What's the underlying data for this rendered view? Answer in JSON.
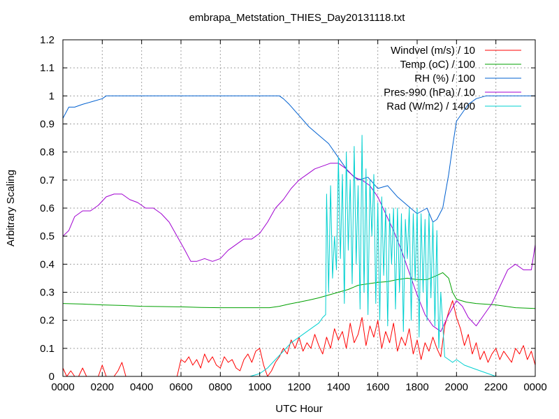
{
  "chart_data": {
    "type": "line",
    "title": "embrapa_Metstation_THIES_Day20131118.txt",
    "xlabel": "UTC Hour",
    "ylabel": "Arbitrary Scaling",
    "xlim": [
      0,
      24
    ],
    "ylim": [
      0,
      1.2
    ],
    "grid": true,
    "legend": "top-right",
    "x_ticks": [
      {
        "value": 0,
        "label": "0000"
      },
      {
        "value": 2,
        "label": "0200"
      },
      {
        "value": 4,
        "label": "0400"
      },
      {
        "value": 6,
        "label": "0600"
      },
      {
        "value": 8,
        "label": "0800"
      },
      {
        "value": 10,
        "label": "1000"
      },
      {
        "value": 12,
        "label": "1200"
      },
      {
        "value": 14,
        "label": "1400"
      },
      {
        "value": 16,
        "label": "1600"
      },
      {
        "value": 18,
        "label": "1800"
      },
      {
        "value": 20,
        "label": "2000"
      },
      {
        "value": 22,
        "label": "2200"
      },
      {
        "value": 24,
        "label": "0000"
      }
    ],
    "y_ticks": [
      {
        "value": 0,
        "label": "0"
      },
      {
        "value": 0.1,
        "label": "0.1"
      },
      {
        "value": 0.2,
        "label": "0.2"
      },
      {
        "value": 0.3,
        "label": "0.3"
      },
      {
        "value": 0.4,
        "label": "0.4"
      },
      {
        "value": 0.5,
        "label": "0.5"
      },
      {
        "value": 0.6,
        "label": "0.6"
      },
      {
        "value": 0.7,
        "label": "0.7"
      },
      {
        "value": 0.8,
        "label": "0.8"
      },
      {
        "value": 0.9,
        "label": "0.9"
      },
      {
        "value": 1,
        "label": "1"
      },
      {
        "value": 1.1,
        "label": "1.1"
      },
      {
        "value": 1.2,
        "label": "1.2"
      }
    ],
    "series": [
      {
        "name": "Windvel (m/s) / 10",
        "color": "#ff0000",
        "x": [
          0,
          0.2,
          0.4,
          0.6,
          0.8,
          1.0,
          1.2,
          1.4,
          1.6,
          1.8,
          2.0,
          2.2,
          2.4,
          2.6,
          2.8,
          3.0,
          3.2,
          3.4,
          3.6,
          3.8,
          4.0,
          4.2,
          4.4,
          4.6,
          4.8,
          5.0,
          5.2,
          5.4,
          5.6,
          5.8,
          6.0,
          6.2,
          6.4,
          6.6,
          6.8,
          7.0,
          7.2,
          7.4,
          7.6,
          7.8,
          8.0,
          8.2,
          8.4,
          8.6,
          8.8,
          9.0,
          9.2,
          9.4,
          9.6,
          9.8,
          10.0,
          10.2,
          10.4,
          10.6,
          10.8,
          11.0,
          11.2,
          11.4,
          11.6,
          11.8,
          12.0,
          12.2,
          12.4,
          12.6,
          12.8,
          13.0,
          13.2,
          13.4,
          13.6,
          13.8,
          14.0,
          14.2,
          14.4,
          14.6,
          14.8,
          15.0,
          15.2,
          15.4,
          15.6,
          15.8,
          16.0,
          16.2,
          16.4,
          16.6,
          16.8,
          17.0,
          17.2,
          17.4,
          17.6,
          17.8,
          18.0,
          18.2,
          18.4,
          18.6,
          18.8,
          19.0,
          19.2,
          19.4,
          19.6,
          19.8,
          20.0,
          20.2,
          20.4,
          20.6,
          20.8,
          21.0,
          21.2,
          21.4,
          21.6,
          21.8,
          22.0,
          22.2,
          22.4,
          22.6,
          22.8,
          23.0,
          23.2,
          23.4,
          23.6,
          23.8,
          24.0
        ],
        "values": [
          0.03,
          0.0,
          0.02,
          0.0,
          0.0,
          0.03,
          0.0,
          0.0,
          0.0,
          0.0,
          0.04,
          0.0,
          0.0,
          0.0,
          0.02,
          0.05,
          0.0,
          0.0,
          0.0,
          0.0,
          0.0,
          0.0,
          0.0,
          0.0,
          0.0,
          0.0,
          0.0,
          0.0,
          0.0,
          0.0,
          0.06,
          0.05,
          0.07,
          0.04,
          0.06,
          0.03,
          0.08,
          0.05,
          0.07,
          0.04,
          0.03,
          0.07,
          0.05,
          0.06,
          0.03,
          0.02,
          0.06,
          0.08,
          0.05,
          0.09,
          0.1,
          0.04,
          0.0,
          0.02,
          0.05,
          0.07,
          0.1,
          0.08,
          0.13,
          0.1,
          0.14,
          0.09,
          0.12,
          0.1,
          0.15,
          0.11,
          0.08,
          0.14,
          0.1,
          0.17,
          0.13,
          0.16,
          0.1,
          0.19,
          0.12,
          0.15,
          0.21,
          0.11,
          0.18,
          0.14,
          0.2,
          0.1,
          0.16,
          0.12,
          0.19,
          0.09,
          0.14,
          0.11,
          0.17,
          0.08,
          0.13,
          0.06,
          0.12,
          0.09,
          0.14,
          0.1,
          0.07,
          0.18,
          0.23,
          0.27,
          0.21,
          0.17,
          0.11,
          0.15,
          0.08,
          0.12,
          0.06,
          0.09,
          0.05,
          0.08,
          0.1,
          0.06,
          0.09,
          0.07,
          0.05,
          0.1,
          0.08,
          0.11,
          0.06,
          0.09,
          0.04
        ]
      },
      {
        "name": "Temp (oC) / 100",
        "color": "#00a000",
        "x": [
          0,
          1,
          2,
          3,
          4,
          5,
          6,
          7,
          8,
          9,
          10,
          10.5,
          11,
          11.5,
          12,
          12.5,
          13,
          13.5,
          14,
          14.5,
          15,
          15.5,
          16,
          16.5,
          17,
          17.5,
          18,
          18.5,
          19,
          19.3,
          19.6,
          19.8,
          20,
          20.5,
          21,
          22,
          23,
          24
        ],
        "values": [
          0.26,
          0.258,
          0.255,
          0.253,
          0.25,
          0.249,
          0.248,
          0.246,
          0.245,
          0.245,
          0.245,
          0.245,
          0.25,
          0.258,
          0.265,
          0.272,
          0.28,
          0.29,
          0.3,
          0.31,
          0.325,
          0.33,
          0.335,
          0.338,
          0.345,
          0.35,
          0.345,
          0.345,
          0.36,
          0.37,
          0.35,
          0.3,
          0.275,
          0.265,
          0.26,
          0.255,
          0.245,
          0.242
        ]
      },
      {
        "name": "RH (%) / 100",
        "color": "#0060d0",
        "x": [
          0,
          0.3,
          0.6,
          1.0,
          1.5,
          2.0,
          2.2,
          3,
          4,
          5,
          6,
          7,
          8,
          9,
          10,
          11,
          11.2,
          11.5,
          12,
          12.5,
          13,
          13.5,
          14,
          14.5,
          15,
          15.5,
          16,
          16.5,
          17,
          17.5,
          18,
          18.5,
          18.8,
          19.0,
          19.3,
          19.6,
          19.8,
          20.0,
          20.3,
          20.6,
          21,
          21.5,
          22,
          23,
          24
        ],
        "values": [
          0.92,
          0.96,
          0.96,
          0.97,
          0.98,
          0.99,
          1.0,
          1.0,
          1.0,
          1.0,
          1.0,
          1.0,
          1.0,
          1.0,
          1.0,
          1.0,
          0.99,
          0.97,
          0.93,
          0.89,
          0.86,
          0.83,
          0.78,
          0.73,
          0.7,
          0.71,
          0.67,
          0.68,
          0.64,
          0.61,
          0.58,
          0.6,
          0.55,
          0.56,
          0.6,
          0.72,
          0.82,
          0.91,
          0.94,
          0.97,
          0.99,
          1.0,
          1.0,
          1.0,
          1.0
        ]
      },
      {
        "name": "Pres-990 (hPa) / 10",
        "color": "#a000d0",
        "x": [
          0,
          0.3,
          0.6,
          1.0,
          1.4,
          1.8,
          2.2,
          2.6,
          3.0,
          3.4,
          3.8,
          4.2,
          4.6,
          5.0,
          5.4,
          5.8,
          6.2,
          6.5,
          6.8,
          7.2,
          7.6,
          8.0,
          8.4,
          8.8,
          9.2,
          9.6,
          10.0,
          10.4,
          10.8,
          11.2,
          11.6,
          12.0,
          12.4,
          12.8,
          13.2,
          13.6,
          14.0,
          14.4,
          14.8,
          15.2,
          15.6,
          16.0,
          16.4,
          16.8,
          17.2,
          17.6,
          18.0,
          18.4,
          18.8,
          19.2,
          19.6,
          20.0,
          20.3,
          20.6,
          21.0,
          21.4,
          21.8,
          22.2,
          22.6,
          23.0,
          23.4,
          23.8,
          24.0
        ],
        "values": [
          0.5,
          0.52,
          0.57,
          0.59,
          0.59,
          0.61,
          0.64,
          0.65,
          0.65,
          0.63,
          0.62,
          0.6,
          0.6,
          0.58,
          0.55,
          0.5,
          0.45,
          0.41,
          0.41,
          0.42,
          0.41,
          0.42,
          0.45,
          0.47,
          0.49,
          0.49,
          0.51,
          0.55,
          0.6,
          0.63,
          0.67,
          0.7,
          0.72,
          0.74,
          0.75,
          0.76,
          0.76,
          0.74,
          0.71,
          0.7,
          0.68,
          0.64,
          0.58,
          0.52,
          0.45,
          0.37,
          0.29,
          0.22,
          0.18,
          0.16,
          0.22,
          0.27,
          0.25,
          0.21,
          0.18,
          0.22,
          0.26,
          0.32,
          0.38,
          0.4,
          0.38,
          0.38,
          0.47
        ]
      },
      {
        "name": "Rad (W/m2) / 1400",
        "color": "#00d0d0",
        "x": [
          0,
          2,
          4,
          6,
          8,
          9.5,
          10.0,
          10.4,
          10.8,
          11.2,
          11.6,
          12.0,
          12.4,
          12.8,
          13.0,
          13.2,
          13.35,
          13.4,
          13.5,
          13.6,
          13.7,
          13.8,
          13.9,
          14.0,
          14.1,
          14.2,
          14.3,
          14.4,
          14.5,
          14.6,
          14.7,
          14.8,
          14.9,
          15.0,
          15.1,
          15.2,
          15.3,
          15.4,
          15.5,
          15.6,
          15.7,
          15.8,
          15.9,
          16.0,
          16.1,
          16.2,
          16.3,
          16.4,
          16.5,
          16.6,
          16.7,
          16.8,
          16.9,
          17.0,
          17.1,
          17.2,
          17.3,
          17.4,
          17.5,
          17.6,
          17.7,
          17.8,
          17.9,
          18.0,
          18.1,
          18.2,
          18.3,
          18.4,
          18.5,
          18.6,
          18.7,
          18.8,
          18.9,
          19.0,
          19.1,
          19.2,
          19.4,
          19.6,
          19.8,
          20.0,
          20.4,
          20.8,
          21.2,
          21.6,
          22.0,
          23.0,
          24.0
        ],
        "values": [
          0.0,
          0.0,
          0.0,
          0.0,
          0.0,
          0.0,
          0.01,
          0.03,
          0.06,
          0.09,
          0.12,
          0.14,
          0.16,
          0.18,
          0.19,
          0.21,
          0.22,
          0.65,
          0.3,
          0.68,
          0.35,
          0.5,
          0.38,
          0.78,
          0.42,
          0.72,
          0.26,
          0.8,
          0.45,
          0.7,
          0.33,
          0.82,
          0.4,
          0.68,
          0.24,
          0.86,
          0.3,
          0.74,
          0.22,
          0.7,
          0.5,
          0.72,
          0.26,
          0.62,
          0.2,
          0.64,
          0.36,
          0.6,
          0.18,
          0.58,
          0.4,
          0.6,
          0.24,
          0.6,
          0.3,
          0.58,
          0.16,
          0.56,
          0.42,
          0.6,
          0.2,
          0.58,
          0.34,
          0.6,
          0.14,
          0.58,
          0.3,
          0.56,
          0.2,
          0.58,
          0.28,
          0.55,
          0.18,
          0.52,
          0.1,
          0.3,
          0.07,
          0.06,
          0.05,
          0.06,
          0.04,
          0.03,
          0.02,
          0.01,
          0.0,
          0.0,
          0.0
        ]
      }
    ]
  }
}
